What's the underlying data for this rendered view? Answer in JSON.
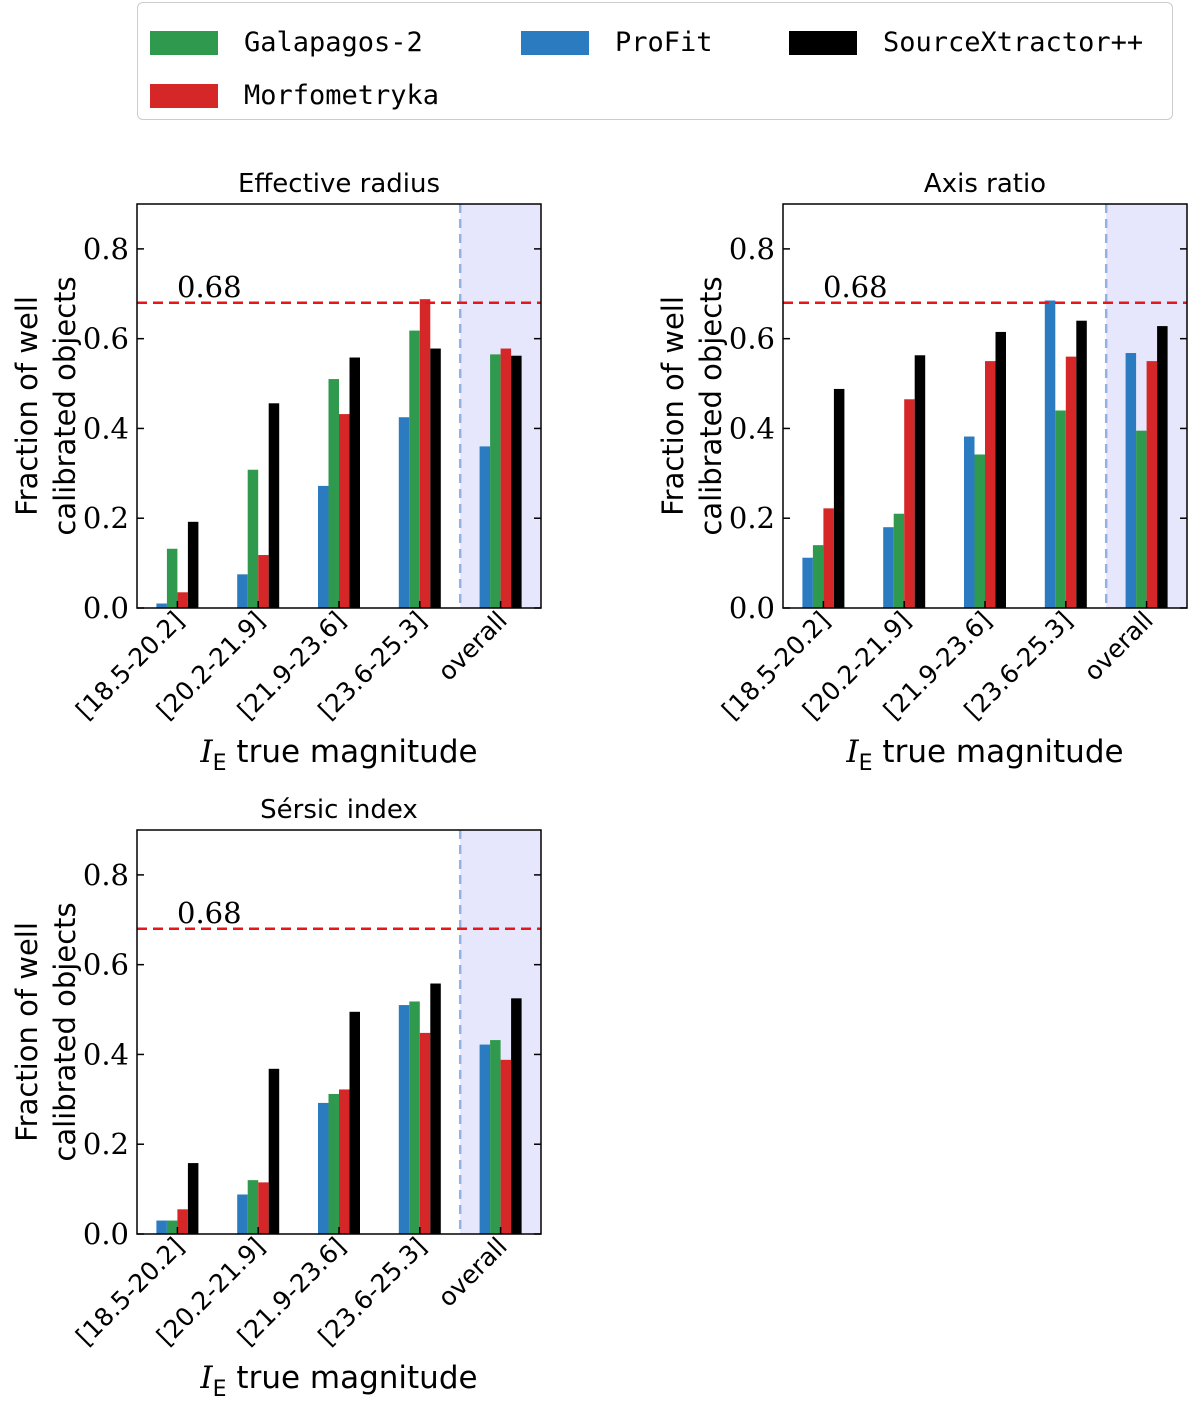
{
  "legend": {
    "items": [
      {
        "name": "Galapagos-2",
        "color": "#2f9a4d"
      },
      {
        "name": "Morfometryka",
        "color": "#d62728"
      },
      {
        "name": "ProFit",
        "color": "#2b7bc0"
      },
      {
        "name": "SourceXtractor++",
        "color": "#000000"
      }
    ]
  },
  "chart_data": [
    {
      "type": "bar",
      "title": "Effective radius",
      "ylabel_line1": "Fraction of well",
      "ylabel_line2": "calibrated objects",
      "xlabel_var": "I",
      "xlabel_sub": "E",
      "xlabel_rest": " true magnitude",
      "categories": [
        "[18.5-20.2]",
        "[20.2-21.9]",
        "[21.9-23.6]",
        "[23.6-25.3]",
        "overall"
      ],
      "ylim": [
        0,
        0.9
      ],
      "yticks": [
        "0.0",
        "0.2",
        "0.4",
        "0.6",
        "0.8"
      ],
      "reference_line": {
        "value": 0.68,
        "label": "0.68"
      },
      "series": [
        {
          "name": "ProFit",
          "values": [
            0.01,
            0.075,
            0.272,
            0.425,
            0.36
          ]
        },
        {
          "name": "Galapagos-2",
          "values": [
            0.132,
            0.308,
            0.51,
            0.618,
            0.565
          ]
        },
        {
          "name": "Morfometryka",
          "values": [
            0.035,
            0.118,
            0.432,
            0.688,
            0.578
          ]
        },
        {
          "name": "SourceXtractor++",
          "values": [
            0.192,
            0.456,
            0.558,
            0.578,
            0.562
          ]
        }
      ]
    },
    {
      "type": "bar",
      "title": "Axis ratio",
      "ylabel_line1": "Fraction of well",
      "ylabel_line2": "calibrated objects",
      "xlabel_var": "I",
      "xlabel_sub": "E",
      "xlabel_rest": " true magnitude",
      "categories": [
        "[18.5-20.2]",
        "[20.2-21.9]",
        "[21.9-23.6]",
        "[23.6-25.3]",
        "overall"
      ],
      "ylim": [
        0,
        0.9
      ],
      "yticks": [
        "0.0",
        "0.2",
        "0.4",
        "0.6",
        "0.8"
      ],
      "reference_line": {
        "value": 0.68,
        "label": "0.68"
      },
      "series": [
        {
          "name": "ProFit",
          "values": [
            0.112,
            0.18,
            0.382,
            0.685,
            0.568
          ]
        },
        {
          "name": "Galapagos-2",
          "values": [
            0.14,
            0.21,
            0.342,
            0.44,
            0.395
          ]
        },
        {
          "name": "Morfometryka",
          "values": [
            0.222,
            0.465,
            0.55,
            0.56,
            0.55
          ]
        },
        {
          "name": "SourceXtractor++",
          "values": [
            0.488,
            0.563,
            0.615,
            0.64,
            0.628
          ]
        }
      ]
    },
    {
      "type": "bar",
      "title": "Sérsic index",
      "ylabel_line1": "Fraction of well",
      "ylabel_line2": "calibrated objects",
      "xlabel_var": "I",
      "xlabel_sub": "E",
      "xlabel_rest": " true magnitude",
      "categories": [
        "[18.5-20.2]",
        "[20.2-21.9]",
        "[21.9-23.6]",
        "[23.6-25.3]",
        "overall"
      ],
      "ylim": [
        0,
        0.9
      ],
      "yticks": [
        "0.0",
        "0.2",
        "0.4",
        "0.6",
        "0.8"
      ],
      "reference_line": {
        "value": 0.68,
        "label": "0.68"
      },
      "series": [
        {
          "name": "ProFit",
          "values": [
            0.03,
            0.088,
            0.292,
            0.51,
            0.422
          ]
        },
        {
          "name": "Galapagos-2",
          "values": [
            0.03,
            0.12,
            0.312,
            0.518,
            0.432
          ]
        },
        {
          "name": "Morfometryka",
          "values": [
            0.055,
            0.115,
            0.322,
            0.448,
            0.388
          ]
        },
        {
          "name": "SourceXtractor++",
          "values": [
            0.158,
            0.368,
            0.495,
            0.558,
            0.525
          ]
        }
      ]
    }
  ]
}
